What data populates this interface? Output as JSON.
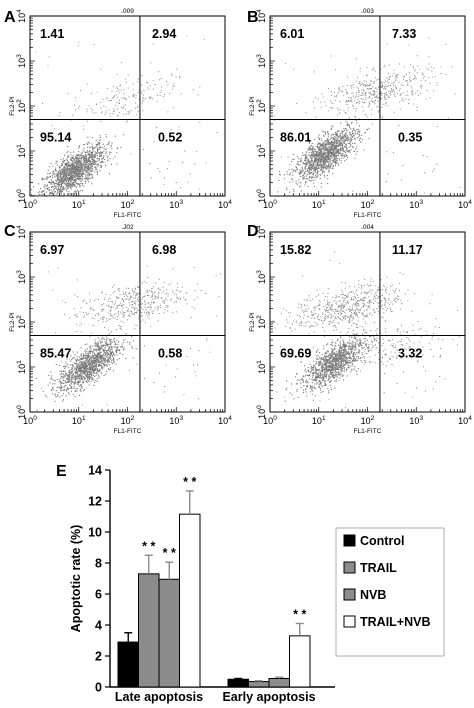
{
  "chart_data": [
    {
      "type": "scatter",
      "panel": "A",
      "top_label": ".009",
      "x_axis_label": "FL1-FITC",
      "y_axis_label": "FL2-PI",
      "x_ticks": [
        "10^0",
        "10^1",
        "10^2",
        "10^3",
        "10^4"
      ],
      "y_ticks": [
        "10^0",
        "10^1",
        "10^2",
        "10^3",
        "10^4"
      ],
      "xlim": [
        1,
        10000
      ],
      "ylim": [
        1,
        10000
      ],
      "scale": "log",
      "quadrant_gate": {
        "x": 180,
        "y": 50
      },
      "quadrant_values": {
        "upper_left": "1.41",
        "upper_right": "2.94",
        "lower_left": "95.14",
        "lower_right": "0.52"
      }
    },
    {
      "type": "scatter",
      "panel": "B",
      "top_label": ".003",
      "x_axis_label": "FL1-FITC",
      "y_axis_label": "FL2-PI",
      "x_ticks": [
        "10^0",
        "10^1",
        "10^2",
        "10^3",
        "10^4"
      ],
      "y_ticks": [
        "10^0",
        "10^1",
        "10^2",
        "10^3",
        "10^4"
      ],
      "xlim": [
        1,
        10000
      ],
      "ylim": [
        1,
        10000
      ],
      "scale": "log",
      "quadrant_gate": {
        "x": 180,
        "y": 50
      },
      "quadrant_values": {
        "upper_left": "6.01",
        "upper_right": "7.33",
        "lower_left": "86.01",
        "lower_right": "0.35"
      }
    },
    {
      "type": "scatter",
      "panel": "C",
      "top_label": ".J02",
      "x_axis_label": "FL1-FITC",
      "y_axis_label": "FL2-PI",
      "x_ticks": [
        "10^0",
        "10^1",
        "10^2",
        "10^3",
        "10^4"
      ],
      "y_ticks": [
        "10^0",
        "10^1",
        "10^2",
        "10^3",
        "10^4"
      ],
      "xlim": [
        1,
        10000
      ],
      "ylim": [
        1,
        10000
      ],
      "scale": "log",
      "quadrant_gate": {
        "x": 180,
        "y": 50
      },
      "quadrant_values": {
        "upper_left": "6.97",
        "upper_right": "6.98",
        "lower_left": "85.47",
        "lower_right": "0.58"
      }
    },
    {
      "type": "scatter",
      "panel": "D",
      "top_label": ".004",
      "x_axis_label": "FL1-FITC",
      "y_axis_label": "FL2-PI",
      "x_ticks": [
        "10^0",
        "10^1",
        "10^2",
        "10^3",
        "10^4"
      ],
      "y_ticks": [
        "10^0",
        "10^1",
        "10^2",
        "10^3",
        "10^4"
      ],
      "xlim": [
        1,
        10000
      ],
      "ylim": [
        1,
        10000
      ],
      "scale": "log",
      "quadrant_gate": {
        "x": 180,
        "y": 50
      },
      "quadrant_values": {
        "upper_left": "15.82",
        "upper_right": "11.17",
        "lower_left": "69.69",
        "lower_right": "3.32"
      }
    },
    {
      "type": "bar",
      "panel": "E",
      "ylabel": "Apoptotic rate (%)",
      "ylim": [
        0,
        14
      ],
      "y_ticks": [
        0,
        2,
        4,
        6,
        8,
        10,
        12,
        14
      ],
      "categories": [
        "Late apoptosis",
        "Early apoptosis"
      ],
      "legend_position": "right",
      "series": [
        {
          "name": "Control",
          "color": "#000000",
          "values": [
            2.9,
            0.5
          ],
          "errors": [
            0.6,
            0.05
          ],
          "significance": [
            "",
            ""
          ]
        },
        {
          "name": "TRAIL",
          "color": "#8c8c8c",
          "values": [
            7.3,
            0.35
          ],
          "errors": [
            1.2,
            0.05
          ],
          "significance": [
            "* *",
            ""
          ]
        },
        {
          "name": "NVB",
          "color": "#8c8c8c",
          "values": [
            6.95,
            0.55
          ],
          "errors": [
            1.1,
            0.08
          ],
          "significance": [
            "* *",
            ""
          ]
        },
        {
          "name": "TRAIL+NVB",
          "color": "#ffffff",
          "values": [
            11.15,
            3.3
          ],
          "errors": [
            1.5,
            0.8
          ],
          "significance": [
            "* *",
            "* *"
          ]
        }
      ]
    }
  ]
}
